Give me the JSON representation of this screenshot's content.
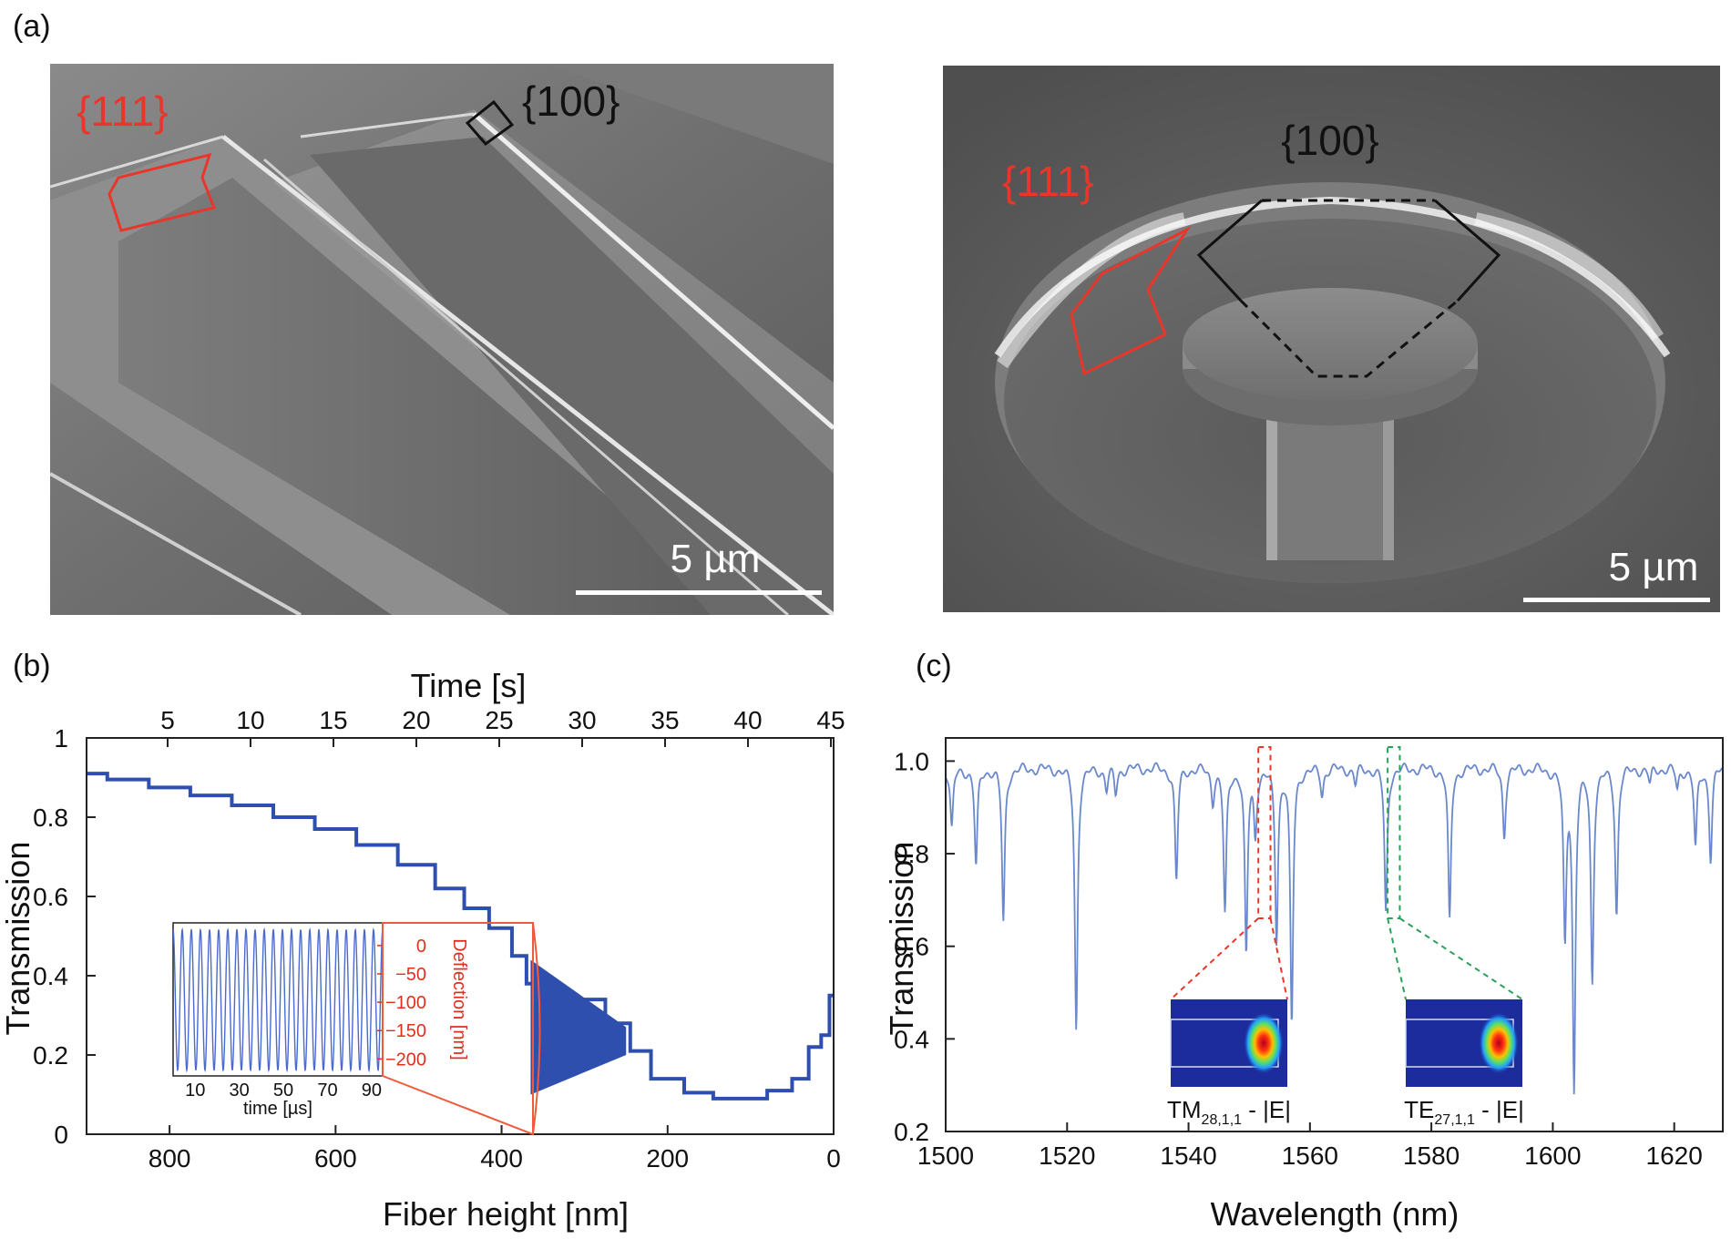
{
  "panel_a": {
    "label": "(a)",
    "left_image": {
      "facet_red": "{111}",
      "facet_black": "{100}",
      "scale": "5 µm"
    },
    "right_image": {
      "facet_red": "{111}",
      "facet_black": "{100}",
      "scale": "5 µm"
    }
  },
  "colors": {
    "blue": "#2f4fae",
    "red": "#e8372a",
    "green": "#2aa05a",
    "spectrum": "#6a88cc"
  },
  "chart_data": [
    {
      "panel": "(b)",
      "type": "line",
      "xlabel": "Fiber height [nm]",
      "x2label": "Time [s]",
      "ylabel": "Transmission",
      "xlim": [
        900,
        0
      ],
      "ylim": [
        0,
        1
      ],
      "x_ticks": [
        800,
        600,
        400,
        200,
        0
      ],
      "x2_ticks": [
        5,
        10,
        15,
        20,
        25,
        30,
        35,
        40,
        45
      ],
      "y_ticks": [
        "0",
        "0.2",
        "0.4",
        "0.6",
        "0.8",
        "1"
      ],
      "series": [
        {
          "x": [
            900,
            850,
            800,
            750,
            700,
            650,
            600,
            550,
            500,
            460,
            430,
            400,
            375,
            365,
            300,
            250,
            240,
            200,
            160,
            130,
            100,
            60,
            40,
            20,
            10,
            0
          ],
          "y": [
            0.91,
            0.895,
            0.875,
            0.855,
            0.83,
            0.8,
            0.77,
            0.73,
            0.68,
            0.62,
            0.57,
            0.52,
            0.45,
            0.38,
            0.34,
            0.28,
            0.21,
            0.14,
            0.105,
            0.09,
            0.09,
            0.11,
            0.14,
            0.22,
            0.25,
            0.35
          ]
        }
      ],
      "oscillation_band": {
        "x": [
          365,
          250
        ],
        "y_min": [
          0.1,
          0.2
        ],
        "y_max": [
          0.44,
          0.27
        ]
      },
      "inset": {
        "xlabel": "time [µs]",
        "ylabel": "Deflection [nm]",
        "x_ticks": [
          "10",
          "30",
          "50",
          "70",
          "90"
        ],
        "y_ticks": [
          "0",
          "−50",
          "−100",
          "−150",
          "−200"
        ],
        "xlim": [
          0,
          95
        ],
        "ylim": [
          -230,
          40
        ],
        "cycles": 23,
        "amplitude_range": [
          -220,
          28
        ]
      }
    },
    {
      "panel": "(c)",
      "type": "line",
      "xlabel": "Wavelength (nm)",
      "ylabel": "Transmission",
      "xlim": [
        1500,
        1628
      ],
      "ylim": [
        0.2,
        1.05
      ],
      "x_ticks": [
        1500,
        1520,
        1540,
        1560,
        1580,
        1600,
        1620
      ],
      "y_ticks": [
        "0.2",
        "0.4",
        "0.6",
        "0.8",
        "1.0"
      ],
      "baseline": 0.985,
      "dips": [
        {
          "x": 1501.0,
          "depth": 0.85
        },
        {
          "x": 1505.0,
          "depth": 0.77
        },
        {
          "x": 1509.5,
          "depth": 0.65
        },
        {
          "x": 1521.5,
          "depth": 0.42
        },
        {
          "x": 1526.5,
          "depth": 0.94
        },
        {
          "x": 1528.0,
          "depth": 0.93
        },
        {
          "x": 1538.0,
          "depth": 0.74
        },
        {
          "x": 1544.0,
          "depth": 0.92
        },
        {
          "x": 1546.0,
          "depth": 0.67
        },
        {
          "x": 1549.5,
          "depth": 0.58
        },
        {
          "x": 1551.0,
          "depth": 0.85
        },
        {
          "x": 1554.5,
          "depth": 0.62
        },
        {
          "x": 1557.0,
          "depth": 0.43
        },
        {
          "x": 1562.0,
          "depth": 0.93
        },
        {
          "x": 1567.5,
          "depth": 0.95
        },
        {
          "x": 1572.5,
          "depth": 0.67
        },
        {
          "x": 1583.0,
          "depth": 0.65
        },
        {
          "x": 1592.0,
          "depth": 0.84
        },
        {
          "x": 1602.0,
          "depth": 0.62
        },
        {
          "x": 1603.5,
          "depth": 0.3
        },
        {
          "x": 1606.5,
          "depth": 0.53
        },
        {
          "x": 1610.5,
          "depth": 0.67
        },
        {
          "x": 1616.0,
          "depth": 0.95
        },
        {
          "x": 1620.5,
          "depth": 0.94
        },
        {
          "x": 1623.5,
          "depth": 0.81
        },
        {
          "x": 1626.0,
          "depth": 0.79
        }
      ],
      "mode_insets": [
        {
          "label": "TM",
          "subscript": "28,1,1",
          "suffix": " - |E|",
          "marker_x": [
            1551.5,
            1553.5
          ],
          "color": "#e8372a"
        },
        {
          "label": "TE",
          "subscript": "27,1,1",
          "suffix": " - |E|",
          "marker_x": [
            1572.8,
            1574.8
          ],
          "color": "#2aa05a"
        }
      ]
    }
  ]
}
